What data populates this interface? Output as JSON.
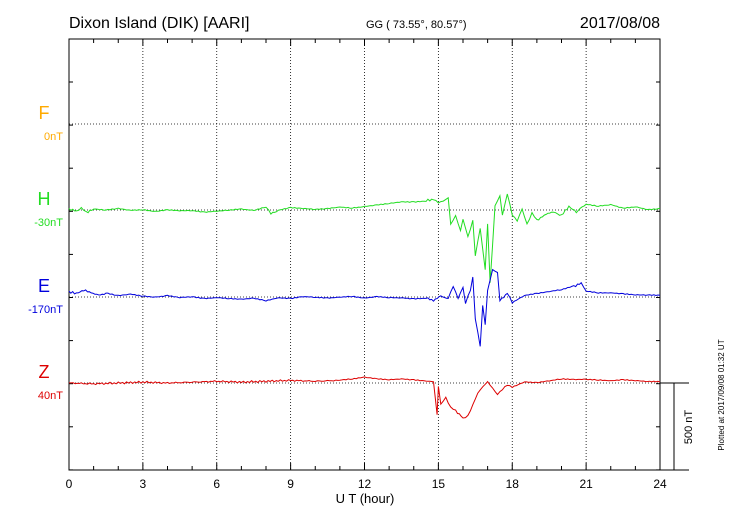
{
  "header": {
    "station": "Dixon Island (DIK)  [AARI]",
    "coords": "GG ( 73.55°,  80.57°)",
    "date": "2017/08/08"
  },
  "plotted_note": "Plotted at 2017/09/08 01:32 UT",
  "scale_label": "500 nT",
  "colors": {
    "F": "#ffaa00",
    "H": "#22dd22",
    "E": "#0000dd",
    "Z": "#dd0000"
  },
  "chart_data": {
    "type": "line",
    "xlabel": "U T (hour)",
    "x_ticks": [
      "0",
      "3",
      "6",
      "9",
      "12",
      "15",
      "18",
      "21",
      "24"
    ],
    "xlim": [
      0,
      24
    ],
    "scale_nT": 500,
    "channels": [
      {
        "name": "F",
        "baseline": "0nT",
        "points": []
      },
      {
        "name": "H",
        "baseline": "-30nT",
        "points": [
          [
            0,
            5
          ],
          [
            0.3,
            -5
          ],
          [
            0.5,
            10
          ],
          [
            0.7,
            -15
          ],
          [
            1,
            5
          ],
          [
            1.5,
            0
          ],
          [
            2,
            10
          ],
          [
            2.5,
            0
          ],
          [
            3,
            5
          ],
          [
            3.5,
            -5
          ],
          [
            4,
            5
          ],
          [
            4.5,
            0
          ],
          [
            5,
            0
          ],
          [
            5.5,
            -10
          ],
          [
            6,
            -5
          ],
          [
            6.5,
            0
          ],
          [
            7,
            5
          ],
          [
            7.5,
            -5
          ],
          [
            8,
            15
          ],
          [
            8.2,
            -20
          ],
          [
            8.5,
            -5
          ],
          [
            9,
            10
          ],
          [
            9.5,
            5
          ],
          [
            10,
            0
          ],
          [
            10.5,
            5
          ],
          [
            11,
            15
          ],
          [
            11.5,
            10
          ],
          [
            12,
            20
          ],
          [
            12.5,
            30
          ],
          [
            13,
            40
          ],
          [
            13.5,
            50
          ],
          [
            14,
            50
          ],
          [
            14.5,
            55
          ],
          [
            14.8,
            60
          ],
          [
            15,
            45
          ],
          [
            15.2,
            55
          ],
          [
            15.4,
            70
          ],
          [
            15.5,
            -80
          ],
          [
            15.7,
            -30
          ],
          [
            15.9,
            -120
          ],
          [
            16,
            -50
          ],
          [
            16.2,
            -150
          ],
          [
            16.4,
            -60
          ],
          [
            16.5,
            -260
          ],
          [
            16.7,
            -100
          ],
          [
            16.9,
            -340
          ],
          [
            17,
            -80
          ],
          [
            17.1,
            -420
          ],
          [
            17.3,
            20
          ],
          [
            17.5,
            80
          ],
          [
            17.6,
            -30
          ],
          [
            17.8,
            90
          ],
          [
            18,
            -30
          ],
          [
            18.2,
            -60
          ],
          [
            18.4,
            10
          ],
          [
            18.6,
            -80
          ],
          [
            18.8,
            -20
          ],
          [
            19,
            -60
          ],
          [
            19.3,
            -30
          ],
          [
            19.6,
            -10
          ],
          [
            20,
            -30
          ],
          [
            20.3,
            20
          ],
          [
            20.6,
            -10
          ],
          [
            21,
            30
          ],
          [
            21.5,
            20
          ],
          [
            22,
            30
          ],
          [
            22.5,
            10
          ],
          [
            23,
            20
          ],
          [
            23.5,
            5
          ],
          [
            24,
            10
          ]
        ]
      },
      {
        "name": "E",
        "baseline": "-170nT",
        "points": [
          [
            0,
            30
          ],
          [
            0.3,
            20
          ],
          [
            0.6,
            40
          ],
          [
            0.9,
            25
          ],
          [
            1.2,
            10
          ],
          [
            1.5,
            20
          ],
          [
            2,
            5
          ],
          [
            2.5,
            15
          ],
          [
            3,
            5
          ],
          [
            3.5,
            0
          ],
          [
            4,
            10
          ],
          [
            4.5,
            0
          ],
          [
            5,
            5
          ],
          [
            5.5,
            -5
          ],
          [
            6,
            0
          ],
          [
            6.5,
            -5
          ],
          [
            7,
            -10
          ],
          [
            7.5,
            -5
          ],
          [
            8,
            -20
          ],
          [
            8.5,
            -5
          ],
          [
            9,
            -10
          ],
          [
            9.5,
            0
          ],
          [
            10,
            -5
          ],
          [
            10.5,
            -10
          ],
          [
            11,
            -5
          ],
          [
            11.5,
            0
          ],
          [
            12,
            -10
          ],
          [
            12.5,
            0
          ],
          [
            13,
            -5
          ],
          [
            13.5,
            -5
          ],
          [
            14,
            -10
          ],
          [
            14.5,
            -5
          ],
          [
            14.8,
            -20
          ],
          [
            15.1,
            5
          ],
          [
            15.4,
            -10
          ],
          [
            15.6,
            60
          ],
          [
            15.8,
            -5
          ],
          [
            16,
            60
          ],
          [
            16.1,
            -40
          ],
          [
            16.3,
            40
          ],
          [
            16.4,
            110
          ],
          [
            16.5,
            -120
          ],
          [
            16.7,
            -280
          ],
          [
            16.8,
            -50
          ],
          [
            16.9,
            -160
          ],
          [
            17,
            40
          ],
          [
            17.2,
            160
          ],
          [
            17.4,
            140
          ],
          [
            17.5,
            -20
          ],
          [
            17.8,
            20
          ],
          [
            18,
            -30
          ],
          [
            18.5,
            10
          ],
          [
            19,
            20
          ],
          [
            19.5,
            30
          ],
          [
            20,
            40
          ],
          [
            20.5,
            60
          ],
          [
            20.8,
            80
          ],
          [
            21,
            30
          ],
          [
            21.5,
            20
          ],
          [
            22,
            20
          ],
          [
            22.5,
            15
          ],
          [
            23,
            10
          ],
          [
            23.5,
            10
          ],
          [
            24,
            10
          ]
        ]
      },
      {
        "name": "Z",
        "baseline": "40nT",
        "points": [
          [
            0,
            0
          ],
          [
            1,
            -5
          ],
          [
            2,
            0
          ],
          [
            3,
            5
          ],
          [
            4,
            0
          ],
          [
            5,
            5
          ],
          [
            6,
            10
          ],
          [
            7,
            5
          ],
          [
            8,
            10
          ],
          [
            9,
            15
          ],
          [
            10,
            10
          ],
          [
            11,
            15
          ],
          [
            11.5,
            20
          ],
          [
            12,
            30
          ],
          [
            12.5,
            20
          ],
          [
            13,
            15
          ],
          [
            13.5,
            20
          ],
          [
            14,
            15
          ],
          [
            14.5,
            10
          ],
          [
            14.8,
            10
          ],
          [
            14.95,
            -180
          ],
          [
            15,
            -20
          ],
          [
            15.1,
            -120
          ],
          [
            15.3,
            -80
          ],
          [
            15.5,
            -140
          ],
          [
            15.7,
            -160
          ],
          [
            16,
            -200
          ],
          [
            16.2,
            -190
          ],
          [
            16.4,
            -130
          ],
          [
            16.6,
            -60
          ],
          [
            16.8,
            -20
          ],
          [
            17,
            10
          ],
          [
            17.2,
            -30
          ],
          [
            17.4,
            -70
          ],
          [
            17.6,
            -40
          ],
          [
            17.8,
            -10
          ],
          [
            18,
            -20
          ],
          [
            18.5,
            10
          ],
          [
            19,
            5
          ],
          [
            19.5,
            15
          ],
          [
            20,
            25
          ],
          [
            20.5,
            20
          ],
          [
            21,
            20
          ],
          [
            21.5,
            15
          ],
          [
            22,
            10
          ],
          [
            22.5,
            15
          ],
          [
            23,
            10
          ],
          [
            23.5,
            5
          ],
          [
            24,
            5
          ]
        ]
      }
    ]
  }
}
